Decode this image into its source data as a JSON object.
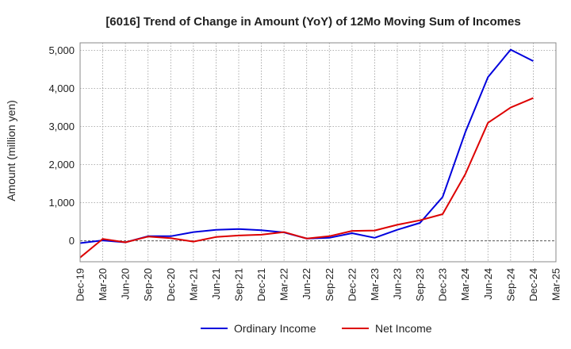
{
  "chart_data": {
    "type": "line",
    "title": "[6016]  Trend of Change in Amount (YoY) of 12Mo Moving Sum of Incomes",
    "xlabel": "",
    "ylabel": "Amount (million yen)",
    "ylim": [
      -550,
      5200
    ],
    "yticks": [
      0,
      1000,
      2000,
      3000,
      4000,
      5000
    ],
    "ytick_labels": [
      "0",
      "1,000",
      "2,000",
      "3,000",
      "4,000",
      "5,000"
    ],
    "categories": [
      "Dec-19",
      "Mar-20",
      "Jun-20",
      "Sep-20",
      "Dec-20",
      "Mar-21",
      "Jun-21",
      "Sep-21",
      "Dec-21",
      "Mar-22",
      "Jun-22",
      "Sep-22",
      "Dec-22",
      "Mar-23",
      "Jun-23",
      "Sep-23",
      "Dec-23",
      "Mar-24",
      "Jun-24",
      "Sep-24",
      "Dec-24",
      "Mar-25"
    ],
    "grid": true,
    "legend_position": "bottom",
    "series": [
      {
        "name": "Ordinary Income",
        "color": "#0000dd",
        "values": [
          -60,
          10,
          -40,
          120,
          120,
          230,
          290,
          310,
          280,
          220,
          60,
          80,
          200,
          80,
          290,
          470,
          1150,
          2850,
          4300,
          5020,
          4720,
          null
        ]
      },
      {
        "name": "Net Income",
        "color": "#dd0000",
        "values": [
          -440,
          50,
          -40,
          110,
          70,
          -20,
          100,
          140,
          160,
          230,
          60,
          120,
          260,
          270,
          420,
          540,
          700,
          1750,
          3100,
          3500,
          3750,
          null
        ]
      }
    ]
  }
}
